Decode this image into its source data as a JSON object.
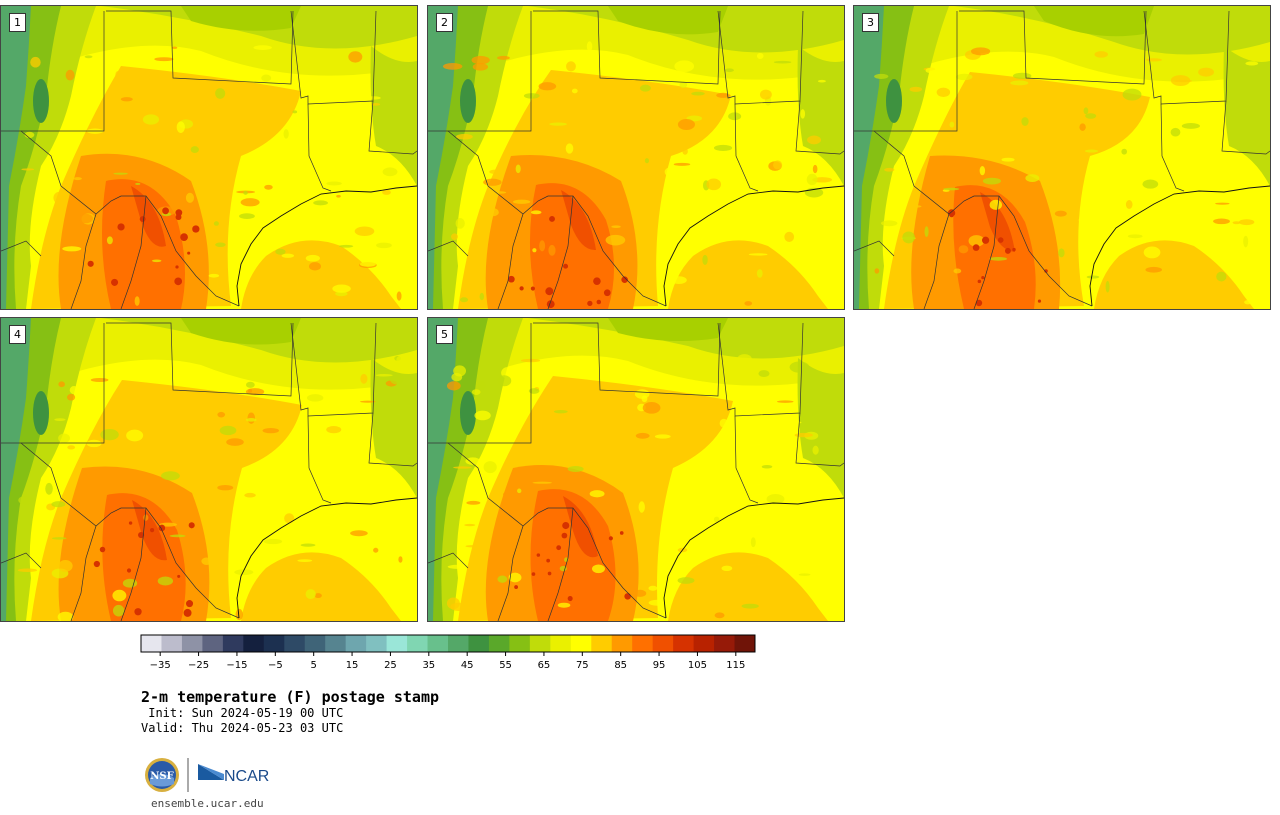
{
  "panels": [
    {
      "label": "1",
      "variant": 0
    },
    {
      "label": "2",
      "variant": 1
    },
    {
      "label": "3",
      "variant": 2
    },
    {
      "label": "4",
      "variant": 3
    },
    {
      "label": "5",
      "variant": 4
    }
  ],
  "colorbar": {
    "colors": [
      "#e6e6ee",
      "#bcbccc",
      "#8e92a6",
      "#5e6480",
      "#2f3a5e",
      "#14203e",
      "#1c3050",
      "#2e4a66",
      "#3f6478",
      "#568490",
      "#6ea6ae",
      "#80c0c0",
      "#9ae6d8",
      "#80d6b2",
      "#68c08c",
      "#54a868",
      "#3e9240",
      "#5aa82a",
      "#86c014",
      "#c0dc0a",
      "#eaf000",
      "#ffff00",
      "#ffcc00",
      "#ff9a00",
      "#ff7000",
      "#f05000",
      "#d63200",
      "#b82200",
      "#961a08",
      "#701408"
    ],
    "ticks": [
      "−35",
      "−25",
      "−15",
      "−5",
      "5",
      "15",
      "25",
      "35",
      "45",
      "55",
      "65",
      "75",
      "85",
      "95",
      "105",
      "115"
    ],
    "min": -40,
    "max": 120
  },
  "title": "2-m temperature (F) postage stamp",
  "init_line": " Init: Sun 2024-05-19 00 UTC",
  "valid_line": "Valid: Thu 2024-05-23 03 UTC",
  "logos": {
    "nsf": "NSF",
    "ncar": "NCAR"
  },
  "site": "ensemble.ucar.edu"
}
